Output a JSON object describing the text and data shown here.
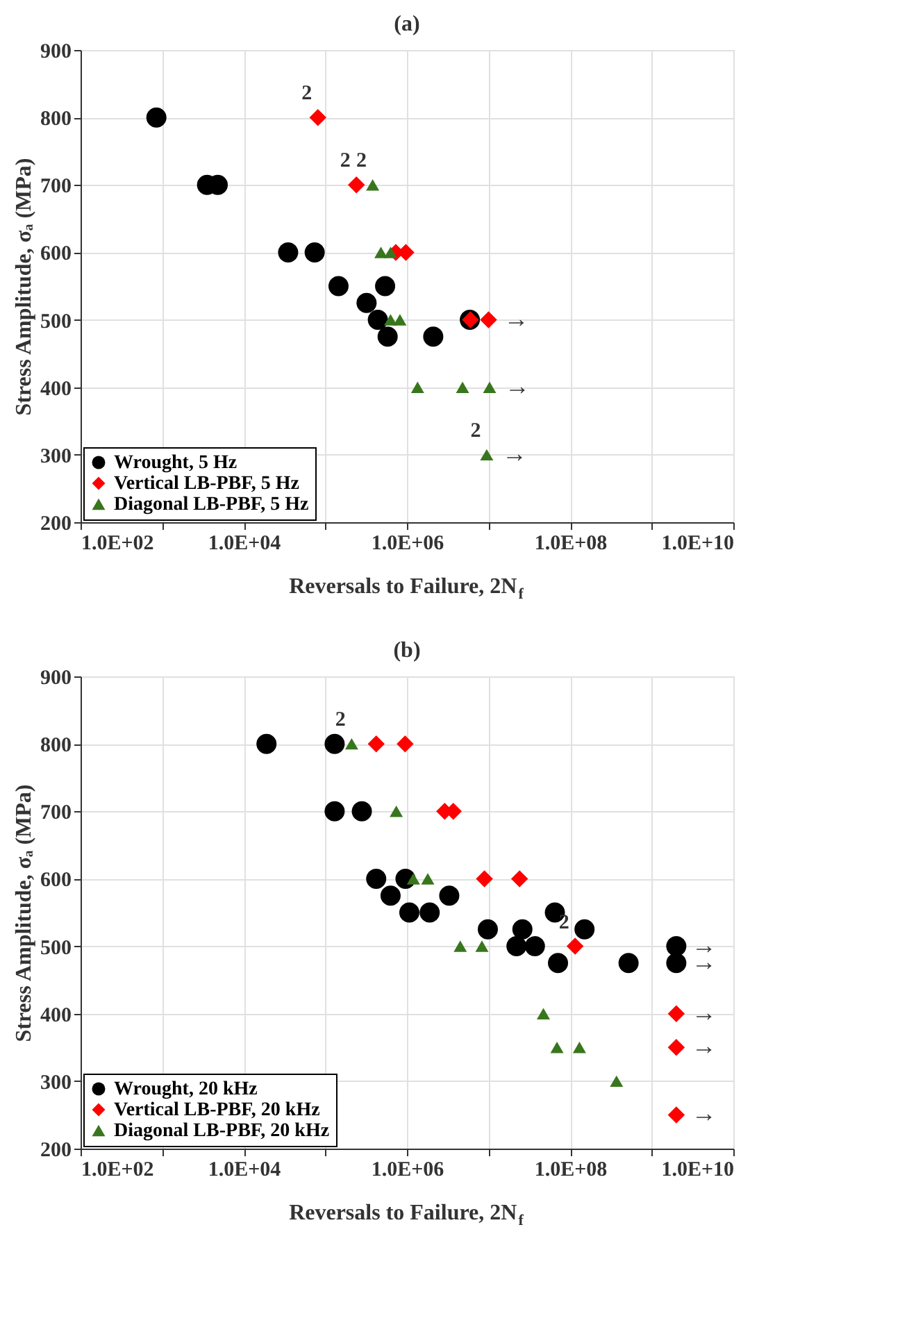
{
  "chart_data": [
    {
      "type": "scatter",
      "title": "(a)",
      "xlabel": "Reversals to Failure, 2N$_{f}$",
      "ylabel": "Stress Amplitude, σₐ (MPa)",
      "log": "x",
      "grid": true,
      "legend": "bottom left",
      "xlim": [
        100,
        10000000000
      ],
      "ylim": [
        200,
        900
      ],
      "xticks": [
        {
          "value": 100,
          "label": "1.0E+02"
        },
        {
          "value": 1000,
          "label": null
        },
        {
          "value": 10000,
          "label": "1.0E+04"
        },
        {
          "value": 100000,
          "label": null
        },
        {
          "value": 1000000,
          "label": "1.0E+06"
        },
        {
          "value": 10000000,
          "label": null
        },
        {
          "value": 100000000,
          "label": "1.0E+08"
        },
        {
          "value": 1000000000,
          "label": null
        },
        {
          "value": 10000000000,
          "label": "1.0E+10"
        }
      ],
      "yticks": [
        200,
        300,
        400,
        500,
        600,
        700,
        800,
        900
      ],
      "series": [
        {
          "name": "Wrought, 5 Hz",
          "color": "#000000",
          "marker": "circle",
          "x": [
            850,
            3550,
            4800,
            35000,
            74000,
            145000,
            320000,
            440000,
            540000,
            580000,
            2100000,
            5900000
          ],
          "values": [
            800,
            700,
            700,
            600,
            600,
            550,
            525,
            500,
            550,
            475,
            475,
            500
          ]
        },
        {
          "name": "Vertical LB-PBF, 5 Hz",
          "color": "#ff0000",
          "marker": "diamond",
          "x": [
            81000,
            240000,
            730000,
            970000,
            6000000,
            10000000
          ],
          "values": [
            800,
            700,
            600,
            600,
            500,
            500
          ]
        },
        {
          "name": "Diagonal LB-PBF, 5 Hz",
          "color": "#38761d",
          "marker": "triangle",
          "x": [
            380000,
            480000,
            630000,
            630000,
            820000,
            1350000,
            4800000,
            10300000,
            9500000
          ],
          "values": [
            700,
            600,
            600,
            500,
            500,
            400,
            400,
            400,
            300
          ]
        }
      ],
      "annotations": [
        {
          "text": "2",
          "x": 81000,
          "y": 800
        },
        {
          "text": "2",
          "x": 240000,
          "y": 700
        },
        {
          "text": "2",
          "x": 380000,
          "y": 700
        },
        {
          "text": "2",
          "x": 9500000,
          "y": 300
        },
        {
          "text": "→",
          "x": 10000000,
          "y": 500
        },
        {
          "text": "→",
          "x": 10300000,
          "y": 400
        },
        {
          "text": "→",
          "x": 9500000,
          "y": 300
        }
      ]
    },
    {
      "type": "scatter",
      "title": "(b)",
      "xlabel": "Reversals to Failure, 2N$_{f}$",
      "ylabel": "Stress Amplitude, σₐ (MPa)",
      "log": "x",
      "grid": true,
      "legend": "bottom left",
      "xlim": [
        100,
        10000000000
      ],
      "ylim": [
        200,
        900
      ],
      "xticks": [
        {
          "value": 100,
          "label": "1.0E+02"
        },
        {
          "value": 1000,
          "label": null
        },
        {
          "value": 10000,
          "label": "1.0E+04"
        },
        {
          "value": 100000,
          "label": null
        },
        {
          "value": 1000000,
          "label": "1.0E+06"
        },
        {
          "value": 10000000,
          "label": null
        },
        {
          "value": 100000000,
          "label": "1.0E+08"
        },
        {
          "value": 1000000000,
          "label": null
        },
        {
          "value": 10000000000,
          "label": "1.0E+10"
        }
      ],
      "yticks": [
        200,
        300,
        400,
        500,
        600,
        700,
        800,
        900
      ],
      "series": [
        {
          "name": "Wrought, 20 kHz",
          "color": "#000000",
          "marker": "circle",
          "x": [
            19000,
            130000,
            130000,
            280000,
            420000,
            960000,
            630000,
            3300000,
            1070000,
            1900000,
            65000000,
            9800000,
            26000000,
            150000000,
            22000000,
            37000000,
            2000000000,
            71000000,
            520000000,
            2000000000
          ],
          "values": [
            800,
            800,
            700,
            700,
            600,
            600,
            575,
            575,
            550,
            550,
            550,
            525,
            525,
            525,
            500,
            500,
            500,
            475,
            475,
            475
          ]
        },
        {
          "name": "Vertical LB-PBF, 20 kHz",
          "color": "#ff0000",
          "marker": "diamond",
          "x": [
            420000,
            950000,
            2900000,
            3700000,
            8900000,
            24000000,
            115000000,
            2000000000,
            2000000000,
            2000000000
          ],
          "values": [
            800,
            800,
            700,
            700,
            600,
            600,
            500,
            400,
            350,
            250
          ]
        },
        {
          "name": "Diagonal LB-PBF, 20 kHz",
          "color": "#38761d",
          "marker": "triangle",
          "x": [
            210000,
            740000,
            1200000,
            1800000,
            4500000,
            8300000,
            47000000,
            69000000,
            130000000,
            370000000
          ],
          "values": [
            800,
            700,
            600,
            600,
            500,
            500,
            400,
            350,
            350,
            300
          ]
        }
      ],
      "annotations": [
        {
          "text": "2",
          "x": 210000,
          "y": 800
        },
        {
          "text": "2",
          "x": 115000000,
          "y": 500
        },
        {
          "text": "→",
          "x": 2000000000,
          "y": 500
        },
        {
          "text": "→",
          "x": 2000000000,
          "y": 475
        },
        {
          "text": "→",
          "x": 2000000000,
          "y": 400
        },
        {
          "text": "→",
          "x": 2000000000,
          "y": 350
        },
        {
          "text": "→",
          "x": 2000000000,
          "y": 250
        }
      ]
    }
  ]
}
